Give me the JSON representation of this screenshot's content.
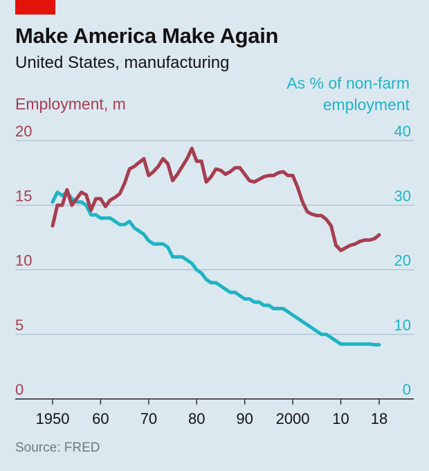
{
  "header": {
    "title": "Make America Make Again",
    "subtitle": "United States, manufacturing"
  },
  "source": "Source: FRED",
  "colors": {
    "employment": "#a63e50",
    "share": "#1fb4c4",
    "background": "#dce8f0",
    "grid": "#9fb6c5",
    "tag": "#e3120b"
  },
  "chart_data": {
    "type": "line",
    "left_axis_label": "Employment, m",
    "right_axis_label": "As % of non-farm employment",
    "left_ticks": [
      "20",
      "15",
      "10",
      "5",
      "0"
    ],
    "right_ticks": [
      "40",
      "30",
      "20",
      "10",
      "0"
    ],
    "x_ticks": [
      "1950",
      "60",
      "70",
      "80",
      "90",
      "2000",
      "10",
      "18"
    ],
    "xlim": [
      1948,
      2019
    ],
    "ylim_left": [
      0,
      20
    ],
    "ylim_right": [
      0,
      40
    ],
    "grid": true,
    "series": [
      {
        "axis": "left",
        "x": [
          1950,
          1951,
          1952,
          1953,
          1954,
          1955,
          1956,
          1957,
          1958,
          1959,
          1960,
          1961,
          1962,
          1963,
          1964,
          1965,
          1966,
          1967,
          1968,
          1969,
          1970,
          1971,
          1972,
          1973,
          1974,
          1975,
          1976,
          1977,
          1978,
          1979,
          1980,
          1981,
          1982,
          1983,
          1984,
          1985,
          1986,
          1987,
          1988,
          1989,
          1990,
          1991,
          1992,
          1993,
          1994,
          1995,
          1996,
          1997,
          1998,
          1999,
          2000,
          2001,
          2002,
          2003,
          2004,
          2005,
          2006,
          2007,
          2008,
          2009,
          2010,
          2011,
          2012,
          2013,
          2014,
          2015,
          2016,
          2017,
          2018
        ],
        "values": [
          13.4,
          15.0,
          15.0,
          16.2,
          15.0,
          15.5,
          16.0,
          15.8,
          14.6,
          15.5,
          15.5,
          14.9,
          15.4,
          15.6,
          15.9,
          16.7,
          17.8,
          18.0,
          18.3,
          18.6,
          17.3,
          17.6,
          18.0,
          18.6,
          18.2,
          16.9,
          17.4,
          18.0,
          18.6,
          19.4,
          18.4,
          18.4,
          16.8,
          17.2,
          17.8,
          17.7,
          17.4,
          17.6,
          17.9,
          17.9,
          17.4,
          16.9,
          16.8,
          17.0,
          17.2,
          17.3,
          17.3,
          17.5,
          17.6,
          17.3,
          17.3,
          16.4,
          15.3,
          14.5,
          14.3,
          14.2,
          14.2,
          13.9,
          13.4,
          11.9,
          11.5,
          11.7,
          11.9,
          12.0,
          12.2,
          12.3,
          12.3,
          12.4,
          12.7
        ]
      },
      {
        "axis": "right",
        "x": [
          1950,
          1951,
          1952,
          1953,
          1954,
          1955,
          1956,
          1957,
          1958,
          1959,
          1960,
          1961,
          1962,
          1963,
          1964,
          1965,
          1966,
          1967,
          1968,
          1969,
          1970,
          1971,
          1972,
          1973,
          1974,
          1975,
          1976,
          1977,
          1978,
          1979,
          1980,
          1981,
          1982,
          1983,
          1984,
          1985,
          1986,
          1987,
          1988,
          1989,
          1990,
          1991,
          1992,
          1993,
          1994,
          1995,
          1996,
          1997,
          1998,
          1999,
          2000,
          2001,
          2002,
          2003,
          2004,
          2005,
          2006,
          2007,
          2008,
          2009,
          2010,
          2011,
          2012,
          2013,
          2014,
          2015,
          2016,
          2017,
          2018
        ],
        "values": [
          30.5,
          32.0,
          31.5,
          32.0,
          31.0,
          30.5,
          30.5,
          30.0,
          28.5,
          28.5,
          28.0,
          28.0,
          28.0,
          27.5,
          27.0,
          27.0,
          27.5,
          26.5,
          26.0,
          25.5,
          24.5,
          24.0,
          24.0,
          24.0,
          23.5,
          22.0,
          22.0,
          22.0,
          21.5,
          21.0,
          20.0,
          19.5,
          18.5,
          18.0,
          18.0,
          17.5,
          17.0,
          16.5,
          16.5,
          16.0,
          15.5,
          15.5,
          15.0,
          15.0,
          14.5,
          14.5,
          14.0,
          14.0,
          14.0,
          13.5,
          13.0,
          12.5,
          12.0,
          11.5,
          11.0,
          10.5,
          10.0,
          10.0,
          9.5,
          9.0,
          8.5,
          8.5,
          8.5,
          8.5,
          8.5,
          8.5,
          8.5,
          8.4,
          8.4
        ]
      }
    ]
  }
}
